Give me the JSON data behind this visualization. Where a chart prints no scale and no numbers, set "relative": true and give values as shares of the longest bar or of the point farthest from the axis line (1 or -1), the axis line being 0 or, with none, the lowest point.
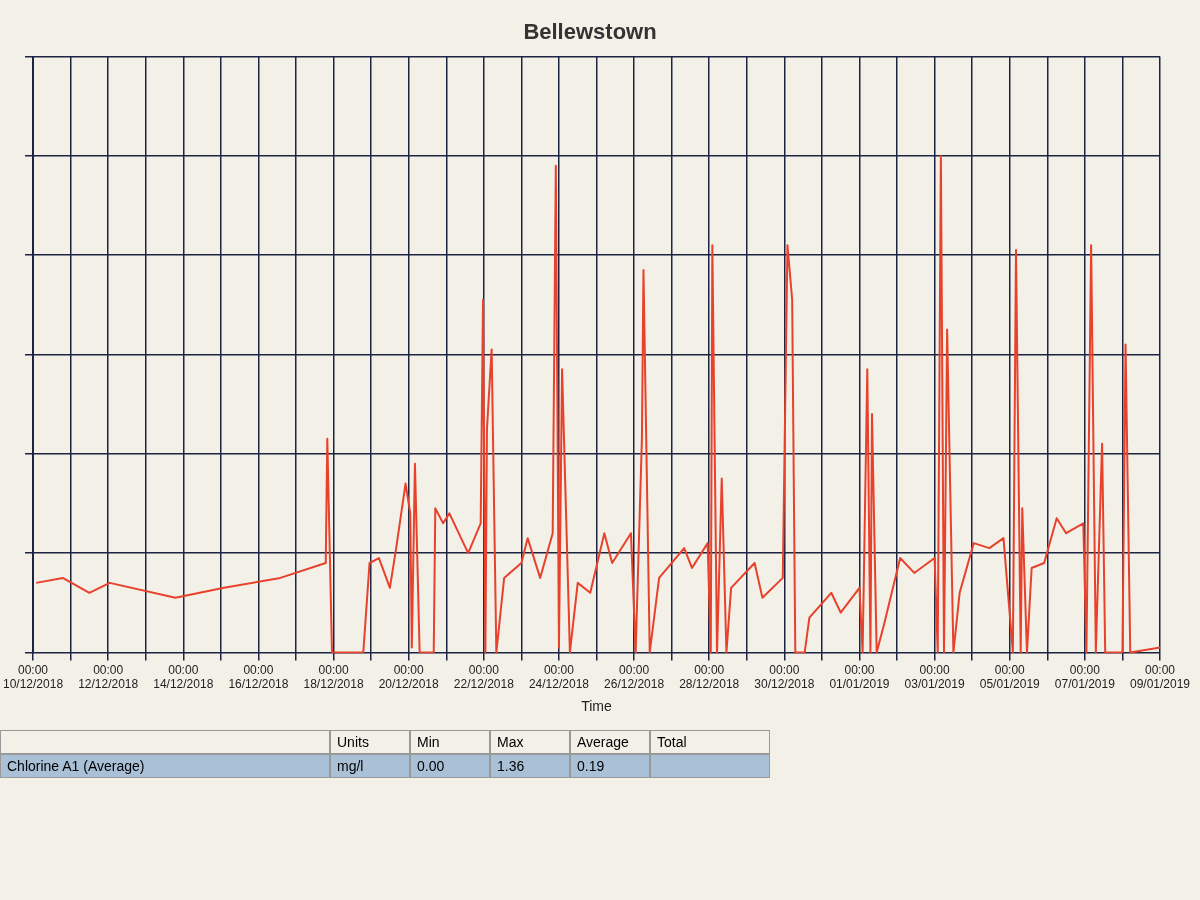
{
  "chart_data": {
    "type": "line",
    "title": "Bellewstown",
    "xlabel": "Time",
    "relative": true,
    "grid": true,
    "legend": false,
    "marker": "none",
    "line_style": "solid",
    "xlim": [
      "2018-12-10T00:00",
      "2019-01-09T00:00"
    ],
    "xticks": [
      {
        "value": "2018-12-10T00:00",
        "label": "00:00\n10/12/2018"
      },
      {
        "value": "2018-12-11T00:00",
        "label": null
      },
      {
        "value": "2018-12-12T00:00",
        "label": "00:00\n12/12/2018"
      },
      {
        "value": "2018-12-13T00:00",
        "label": null
      },
      {
        "value": "2018-12-14T00:00",
        "label": "00:00\n14/12/2018"
      },
      {
        "value": "2018-12-15T00:00",
        "label": null
      },
      {
        "value": "2018-12-16T00:00",
        "label": "00:00\n16/12/2018"
      },
      {
        "value": "2018-12-17T00:00",
        "label": null
      },
      {
        "value": "2018-12-18T00:00",
        "label": "00:00\n18/12/2018"
      },
      {
        "value": "2018-12-19T00:00",
        "label": null
      },
      {
        "value": "2018-12-20T00:00",
        "label": "00:00\n20/12/2018"
      },
      {
        "value": "2018-12-21T00:00",
        "label": null
      },
      {
        "value": "2018-12-22T00:00",
        "label": "00:00\n22/12/2018"
      },
      {
        "value": "2018-12-23T00:00",
        "label": null
      },
      {
        "value": "2018-12-24T00:00",
        "label": "00:00\n24/12/2018"
      },
      {
        "value": "2018-12-25T00:00",
        "label": null
      },
      {
        "value": "2018-12-26T00:00",
        "label": "00:00\n26/12/2018"
      },
      {
        "value": "2018-12-27T00:00",
        "label": null
      },
      {
        "value": "2018-12-28T00:00",
        "label": "00:00\n28/12/2018"
      },
      {
        "value": "2018-12-29T00:00",
        "label": null
      },
      {
        "value": "2018-12-30T00:00",
        "label": "00:00\n30/12/2018"
      },
      {
        "value": "2018-12-31T00:00",
        "label": null
      },
      {
        "value": "2019-01-01T00:00",
        "label": "00:00\n01/01/2019"
      },
      {
        "value": "2019-01-02T00:00",
        "label": null
      },
      {
        "value": "2019-01-03T00:00",
        "label": "00:00\n03/01/2019"
      },
      {
        "value": "2019-01-04T00:00",
        "label": null
      },
      {
        "value": "2019-01-05T00:00",
        "label": "00:00\n05/01/2019"
      },
      {
        "value": "2019-01-06T00:00",
        "label": null
      },
      {
        "value": "2019-01-07T00:00",
        "label": "00:00\n07/01/2019"
      },
      {
        "value": "2019-01-08T00:00",
        "label": null
      },
      {
        "value": "2019-01-09T00:00",
        "label": "00:00\n09/01/2019"
      }
    ],
    "series": [
      {
        "color": "#e8412c",
        "x": [
          "2018-12-10T02:00",
          "2018-12-10T19:00",
          "2018-12-11T12:00",
          "2018-12-12T01:00",
          "2018-12-13T19:00",
          "2018-12-15T02:00",
          "2018-12-16T14:00",
          "2018-12-17T19:00",
          "2018-12-17T20:00",
          "2018-12-17T23:00",
          "2018-12-18T19:00",
          "2018-12-18T23:00",
          "2018-12-19T05:00",
          "2018-12-19T12:00",
          "2018-12-19T16:00",
          "2018-12-19T22:00",
          "2018-12-20T01:00",
          "2018-12-20T02:00",
          "2018-12-20T04:00",
          "2018-12-20T07:00",
          "2018-12-20T16:00",
          "2018-12-20T17:00",
          "2018-12-20T22:00",
          "2018-12-21T02:00",
          "2018-12-21T14:00",
          "2018-12-21T22:00",
          "2018-12-21T23:30",
          "2018-12-22T01:00",
          "2018-12-22T02:00",
          "2018-12-22T05:00",
          "2018-12-22T08:00",
          "2018-12-22T13:00",
          "2018-12-23T00:00",
          "2018-12-23T04:00",
          "2018-12-23T12:00",
          "2018-12-23T20:00",
          "2018-12-23T22:00",
          "2018-12-24T00:00",
          "2018-12-24T02:00",
          "2018-12-24T07:00",
          "2018-12-24T12:00",
          "2018-12-24T20:00",
          "2018-12-25T05:00",
          "2018-12-25T10:00",
          "2018-12-25T22:00",
          "2018-12-26T01:00",
          "2018-12-26T05:00",
          "2018-12-26T06:00",
          "2018-12-26T10:00",
          "2018-12-26T16:00",
          "2018-12-27T08:00",
          "2018-12-27T13:00",
          "2018-12-27T23:00",
          "2018-12-28T01:00",
          "2018-12-28T02:00",
          "2018-12-28T05:00",
          "2018-12-28T08:00",
          "2018-12-28T11:00",
          "2018-12-28T14:00",
          "2018-12-29T05:00",
          "2018-12-29T10:00",
          "2018-12-29T23:00",
          "2018-12-30T02:00",
          "2018-12-30T05:00",
          "2018-12-30T07:00",
          "2018-12-30T13:00",
          "2018-12-30T16:00",
          "2018-12-31T06:00",
          "2018-12-31T12:00",
          "2019-01-01T00:00",
          "2019-01-01T02:00",
          "2019-01-01T05:00",
          "2019-01-01T07:00",
          "2019-01-01T08:00",
          "2019-01-01T11:00",
          "2019-01-01T16:00",
          "2019-01-02T02:00",
          "2019-01-02T11:00",
          "2019-01-03T00:00",
          "2019-01-03T02:00",
          "2019-01-03T04:00",
          "2019-01-03T06:00",
          "2019-01-03T08:00",
          "2019-01-03T12:00",
          "2019-01-03T16:00",
          "2019-01-04T01:00",
          "2019-01-04T11:00",
          "2019-01-04T20:00",
          "2019-01-05T02:00",
          "2019-01-05T04:00",
          "2019-01-05T07:00",
          "2019-01-05T08:00",
          "2019-01-05T11:00",
          "2019-01-05T14:00",
          "2019-01-05T22:00",
          "2019-01-06T06:00",
          "2019-01-06T12:00",
          "2019-01-06T23:00",
          "2019-01-07T01:00",
          "2019-01-07T04:00",
          "2019-01-07T07:00",
          "2019-01-07T11:00",
          "2019-01-07T13:00",
          "2019-01-08T00:00",
          "2019-01-08T02:00",
          "2019-01-08T05:00",
          "2019-01-09T00:00"
        ],
        "values": [
          0.14,
          0.15,
          0.12,
          0.14,
          0.11,
          0.13,
          0.15,
          0.18,
          0.43,
          0,
          0,
          0.18,
          0.19,
          0.13,
          0.21,
          0.34,
          0.28,
          0.01,
          0.38,
          0,
          0,
          0.29,
          0.26,
          0.28,
          0.2,
          0.26,
          0.71,
          0,
          0.45,
          0.61,
          0,
          0.15,
          0.18,
          0.23,
          0.15,
          0.24,
          0.98,
          0.01,
          0.57,
          0,
          0.14,
          0.12,
          0.24,
          0.18,
          0.24,
          0,
          0.43,
          0.77,
          0,
          0.15,
          0.21,
          0.17,
          0.22,
          0,
          0.82,
          0,
          0.35,
          0,
          0.13,
          0.18,
          0.11,
          0.15,
          0.82,
          0.71,
          0,
          0,
          0.07,
          0.12,
          0.08,
          0.13,
          0,
          0.57,
          0,
          0.48,
          0,
          0.06,
          0.19,
          0.16,
          0.19,
          0,
          1,
          0,
          0.65,
          0,
          0.12,
          0.22,
          0.21,
          0.23,
          0,
          0.81,
          0,
          0.29,
          0,
          0.17,
          0.18,
          0.27,
          0.24,
          0.26,
          0,
          0.82,
          0,
          0.42,
          0,
          0,
          0.62,
          0,
          0.01
        ]
      }
    ],
    "annotations": [
      "Chlorine A1 (Average)",
      "Units",
      "Min",
      "Max",
      "Average",
      "Total",
      "mg/l",
      "0.00",
      "1.36",
      "0.19"
    ]
  }
}
